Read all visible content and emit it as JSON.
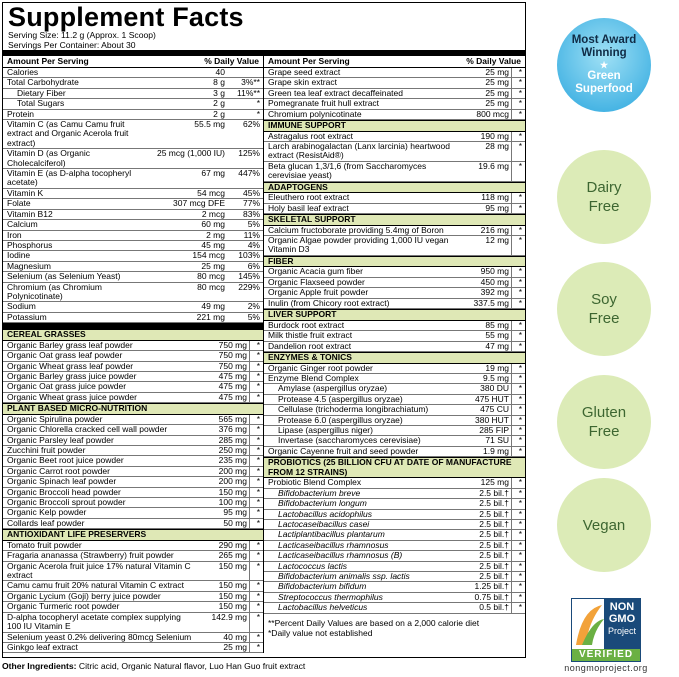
{
  "title": "Supplement Facts",
  "serving_size": "Serving Size: 11.2 g (Approx. 1 Scoop)",
  "servings": "Servings Per Container: About 30",
  "left": {
    "header": [
      "Amount Per Serving",
      "% Daily Value"
    ],
    "nutrients": [
      {
        "name": "Calories",
        "amount": "40"
      },
      {
        "name": "Total Carbohydrate",
        "amount": "8 g",
        "dv": "3%**"
      },
      {
        "name": "Dietary Fiber",
        "amount": "3 g",
        "dv": "11%**",
        "indent": true
      },
      {
        "name": "Total Sugars",
        "amount": "2 g",
        "dv": "*",
        "indent": true
      },
      {
        "name": "Protein",
        "amount": "2 g",
        "dv": "*"
      },
      {
        "name": "Vitamin C (as Camu Camu fruit extract and Organic Acerola fruit extract)",
        "amount": "55.5 mg",
        "dv": "62%"
      },
      {
        "name": "Vitamin D (as Organic Cholecalciferol)",
        "amount": "25 mcg (1,000 IU)",
        "dv": "125%"
      },
      {
        "name": "Vitamin E (as D-alpha tocopheryl acetate)",
        "amount": "67 mg",
        "dv": "447%"
      },
      {
        "name": "Vitamin K",
        "amount": "54 mcg",
        "dv": "45%"
      },
      {
        "name": "Folate",
        "amount": "307 mcg DFE",
        "dv": "77%"
      },
      {
        "name": "Vitamin B12",
        "amount": "2 mcg",
        "dv": "83%"
      },
      {
        "name": "Calcium",
        "amount": "60 mg",
        "dv": "5%"
      },
      {
        "name": "Iron",
        "amount": "2 mg",
        "dv": "11%"
      },
      {
        "name": "Phosphorus",
        "amount": "45 mg",
        "dv": "4%"
      },
      {
        "name": "Iodine",
        "amount": "154 mcg",
        "dv": "103%"
      },
      {
        "name": "Magnesium",
        "amount": "25 mg",
        "dv": "6%"
      },
      {
        "name": "Selenium (as Selenium Yeast)",
        "amount": "80 mcg",
        "dv": "145%"
      },
      {
        "name": "Chromium (as Chromium Polynicotinate)",
        "amount": "80 mcg",
        "dv": "229%"
      },
      {
        "name": "Sodium",
        "amount": "49 mg",
        "dv": "2%"
      },
      {
        "name": "Potassium",
        "amount": "221 mg",
        "dv": "5%"
      }
    ],
    "sections": [
      {
        "title": "CEREAL GRASSES",
        "rows": [
          {
            "name": "Organic Barley grass leaf powder",
            "amount": "750 mg",
            "dv": "*"
          },
          {
            "name": "Organic Oat grass leaf powder",
            "amount": "750 mg",
            "dv": "*"
          },
          {
            "name": "Organic Wheat grass leaf powder",
            "amount": "750 mg",
            "dv": "*"
          },
          {
            "name": "Organic Barley grass juice powder",
            "amount": "475 mg",
            "dv": "*"
          },
          {
            "name": "Organic Oat grass juice powder",
            "amount": "475 mg",
            "dv": "*"
          },
          {
            "name": "Organic Wheat grass juice powder",
            "amount": "475 mg",
            "dv": "*"
          }
        ]
      },
      {
        "title": "PLANT BASED MICRO-NUTRITION",
        "rows": [
          {
            "name": "Organic Spirulina powder",
            "amount": "565 mg",
            "dv": "*"
          },
          {
            "name": "Organic Chlorella cracked cell wall powder",
            "amount": "376 mg",
            "dv": "*"
          },
          {
            "name": "Organic Parsley leaf powder",
            "amount": "285 mg",
            "dv": "*"
          },
          {
            "name": "Zucchini fruit powder",
            "amount": "250 mg",
            "dv": "*"
          },
          {
            "name": "Organic Beet root juice powder",
            "amount": "235 mg",
            "dv": "*"
          },
          {
            "name": "Organic Carrot root powder",
            "amount": "200 mg",
            "dv": "*"
          },
          {
            "name": "Organic Spinach leaf powder",
            "amount": "200 mg",
            "dv": "*"
          },
          {
            "name": "Organic Broccoli head powder",
            "amount": "150 mg",
            "dv": "*"
          },
          {
            "name": "Organic Broccoli sprout powder",
            "amount": "100 mg",
            "dv": "*"
          },
          {
            "name": "Organic Kelp powder",
            "amount": "95 mg",
            "dv": "*"
          },
          {
            "name": "Collards leaf powder",
            "amount": "50 mg",
            "dv": "*"
          }
        ]
      },
      {
        "title": "ANTIOXIDANT LIFE PRESERVERS",
        "rows": [
          {
            "name": "Tomato fruit powder",
            "amount": "290 mg",
            "dv": "*"
          },
          {
            "name": "Fragaria ananassa (Strawberry) fruit powder",
            "amount": "265 mg",
            "dv": "*"
          },
          {
            "name": "Organic Acerola fruit juice 17% natural Vitamin C extract",
            "amount": "150 mg",
            "dv": "*"
          },
          {
            "name": "Camu camu fruit 20% natural Vitamin C extract",
            "amount": "150 mg",
            "dv": "*"
          },
          {
            "name": "Organic Lycium (Goji) berry juice powder",
            "amount": "150 mg",
            "dv": "*"
          },
          {
            "name": "Organic Turmeric root powder",
            "amount": "150 mg",
            "dv": "*"
          },
          {
            "name": "D-alpha tocopheryl acetate complex supplying 100 IU Vitamin E",
            "amount": "142.9 mg",
            "dv": "*"
          },
          {
            "name": "Selenium yeast 0.2% delivering 80mcg Selenium",
            "amount": "40 mg",
            "dv": "*"
          },
          {
            "name": "Ginkgo leaf extract",
            "amount": "25 mg",
            "dv": "*"
          }
        ]
      }
    ]
  },
  "right": {
    "header": [
      "Amount Per Serving",
      "% Daily Value"
    ],
    "rows": [
      {
        "name": "Grape seed extract",
        "amount": "25 mg",
        "dv": "*"
      },
      {
        "name": "Grape skin extract",
        "amount": "25 mg",
        "dv": "*"
      },
      {
        "name": "Green tea leaf extract decaffeinated",
        "amount": "25 mg",
        "dv": "*"
      },
      {
        "name": "Pomegranate fruit hull extract",
        "amount": "25 mg",
        "dv": "*"
      },
      {
        "name": "Chromium polynicotinate",
        "amount": "800 mcg",
        "dv": "*"
      }
    ],
    "sections": [
      {
        "title": "IMMUNE SUPPORT",
        "rows": [
          {
            "name": "Astragalus root extract",
            "amount": "190 mg",
            "dv": "*"
          },
          {
            "name": "Larch arabinogalactan (Lanx larcinia) heartwood extract (ResistAid®)",
            "amount": "28 mg",
            "dv": "*"
          },
          {
            "name": "Beta glucan 1,3/1,6 (from Saccharomyces cerevisiae yeast)",
            "amount": "19.6 mg",
            "dv": "*"
          }
        ]
      },
      {
        "title": "ADAPTOGENS",
        "rows": [
          {
            "name": "Eleuthero root extract",
            "amount": "118 mg",
            "dv": "*"
          },
          {
            "name": "Holy basil leaf extract",
            "amount": "95 mg",
            "dv": "*"
          }
        ]
      },
      {
        "title": "SKELETAL SUPPORT",
        "rows": [
          {
            "name": "Calcium fructoborate providing 5.4mg of Boron",
            "amount": "216 mg",
            "dv": "*"
          },
          {
            "name": "Organic Algae powder providing 1,000 IU vegan Vitamin D3",
            "amount": "12 mg",
            "dv": "*"
          }
        ]
      },
      {
        "title": "FIBER",
        "rows": [
          {
            "name": "Organic Acacia gum fiber",
            "amount": "950 mg",
            "dv": "*"
          },
          {
            "name": "Organic Flaxseed powder",
            "amount": "450 mg",
            "dv": "*"
          },
          {
            "name": "Organic Apple fruit powder",
            "amount": "392 mg",
            "dv": "*"
          },
          {
            "name": "Inulin (from Chicory root extract)",
            "amount": "337.5 mg",
            "dv": "*"
          }
        ]
      },
      {
        "title": "LIVER SUPPORT",
        "rows": [
          {
            "name": "Burdock root extract",
            "amount": "85 mg",
            "dv": "*"
          },
          {
            "name": "Milk thistle fruit extract",
            "amount": "55 mg",
            "dv": "*"
          },
          {
            "name": "Dandelion root extract",
            "amount": "47 mg",
            "dv": "*"
          }
        ]
      },
      {
        "title": "ENZYMES & TONICS",
        "rows": [
          {
            "name": "Organic Ginger root powder",
            "amount": "19 mg",
            "dv": "*"
          },
          {
            "name": "Enzyme Blend Complex",
            "amount": "9.5 mg",
            "dv": "*"
          },
          {
            "name": "Amylase (aspergillus oryzae)",
            "amount": "380 DU",
            "dv": "*",
            "indent": true
          },
          {
            "name": "Protease 4.5 (aspergillus oryzae)",
            "amount": "475 HUT",
            "dv": "*",
            "indent": true
          },
          {
            "name": "Cellulase (trichoderma longibrachiatum)",
            "amount": "475 CU",
            "dv": "*",
            "indent": true
          },
          {
            "name": "Protease 6.0 (aspergillus oryzae)",
            "amount": "380 HUT",
            "dv": "*",
            "indent": true
          },
          {
            "name": "Lipase (aspergillus niger)",
            "amount": "285 FIP",
            "dv": "*",
            "indent": true
          },
          {
            "name": "Invertase (saccharomyces cerevisiae)",
            "amount": "71 SU",
            "dv": "*",
            "indent": true
          },
          {
            "name": "Organic Cayenne fruit and seed powder",
            "amount": "1.9 mg",
            "dv": "*"
          }
        ]
      },
      {
        "title": "PROBIOTICS (25 BILLION CFU AT DATE OF MANUFACTURE FROM 12 STRAINS)",
        "rows": [
          {
            "name": "Probiotic Blend Complex",
            "amount": "125 mg",
            "dv": "*"
          },
          {
            "name": "Bifidobacterium breve",
            "amount": "2.5 bil.†",
            "dv": "*",
            "indent": true
          },
          {
            "name": "Bifidobacterium longum",
            "amount": "2.5 bil.†",
            "dv": "*",
            "indent": true
          },
          {
            "name": "Lactobacillus acidophilus",
            "amount": "2.5 bil.†",
            "dv": "*",
            "indent": true
          },
          {
            "name": "Lactocaseibacillus casei",
            "amount": "2.5 bil.†",
            "dv": "*",
            "indent": true
          },
          {
            "name": "Lactiplantibacillus plantarum",
            "amount": "2.5 bil.†",
            "dv": "*",
            "indent": true
          },
          {
            "name": "Lacticaseibacillus rhamnosus",
            "amount": "2.5 bil.†",
            "dv": "*",
            "indent": true
          },
          {
            "name": "Lacticaseibacillus rhamnosus (B)",
            "amount": "2.5 bil.†",
            "dv": "*",
            "indent": true
          },
          {
            "name": "Lactococcus lactis",
            "amount": "2.5 bil.†",
            "dv": "*",
            "indent": true
          },
          {
            "name": "Bifidobacterium animalis ssp. lactis",
            "amount": "2.5 bil.†",
            "dv": "*",
            "indent": true
          },
          {
            "name": "Bifidobacterium bifidum",
            "amount": "1.25 bil.†",
            "dv": "*",
            "indent": true
          },
          {
            "name": "Streptococcus thermophilus",
            "amount": "0.75 bil.†",
            "dv": "*",
            "indent": true
          },
          {
            "name": "Lactobacillus helveticus",
            "amount": "0.5 bil.†",
            "dv": "*",
            "indent": true
          }
        ]
      }
    ],
    "footnotes": [
      "**Percent Daily Values are based on a 2,000 calorie diet",
      "*Daily value not established"
    ]
  },
  "other_ingredients": {
    "label": "Other Ingredients:",
    "text": "Citric acid, Organic Natural flavor, Luo Han Guo fruit extract"
  },
  "badges": {
    "award": {
      "top": "Most Award Winning",
      "bottom": "Green Superfood"
    },
    "claims": [
      "Dairy Free",
      "Soy Free",
      "Gluten Free",
      "Vegan"
    ],
    "nongmo": {
      "line1": "NON",
      "line2": "GMO",
      "line3": "Project",
      "verified": "VERIFIED",
      "url": "nongmoproject.org"
    }
  }
}
